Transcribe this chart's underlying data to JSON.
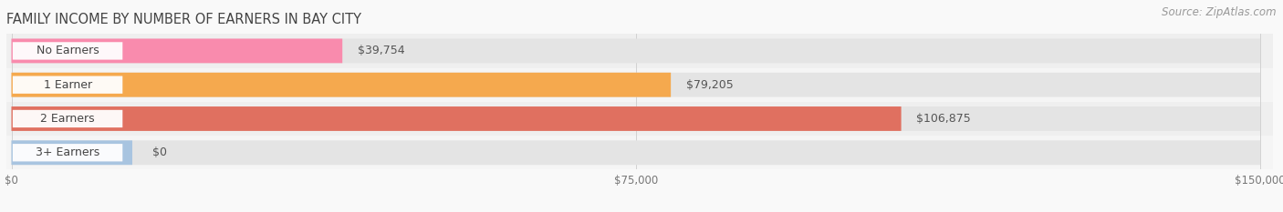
{
  "title": "FAMILY INCOME BY NUMBER OF EARNERS IN BAY CITY",
  "source": "Source: ZipAtlas.com",
  "categories": [
    "No Earners",
    "1 Earner",
    "2 Earners",
    "3+ Earners"
  ],
  "values": [
    39754,
    79205,
    106875,
    0
  ],
  "bar_colors": [
    "#F98BAD",
    "#F5A94E",
    "#E07060",
    "#A8C4E0"
  ],
  "label_texts": [
    "$39,754",
    "$79,205",
    "$106,875",
    "$0"
  ],
  "row_bg_colors": [
    "#EFEFEF",
    "#F5F5F5",
    "#EFEFEF",
    "#F5F5F5"
  ],
  "xlim_max": 150000,
  "xticks": [
    0,
    75000,
    150000
  ],
  "xtick_labels": [
    "$0",
    "$75,000",
    "$150,000"
  ],
  "background_color": "#F9F9F9",
  "bar_bg_color": "#E4E4E4",
  "pill_bg_color": "#FFFFFF",
  "title_color": "#444444",
  "source_color": "#999999",
  "label_color": "#555555",
  "cat_color": "#444444",
  "title_fontsize": 10.5,
  "source_fontsize": 8.5,
  "value_fontsize": 9,
  "category_fontsize": 9
}
